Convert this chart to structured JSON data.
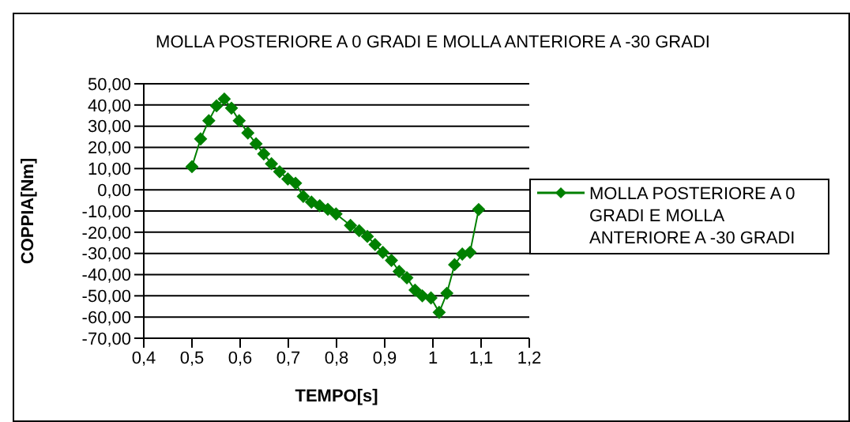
{
  "chart_data": {
    "type": "line",
    "title": "MOLLA POSTERIORE A 0 GRADI E MOLLA ANTERIORE A -30 GRADI",
    "xlabel": "TEMPO[s]",
    "ylabel": "COPPIA[Nm]",
    "x": [
      0.5,
      0.518,
      0.535,
      0.551,
      0.567,
      0.582,
      0.598,
      0.616,
      0.633,
      0.649,
      0.665,
      0.682,
      0.699,
      0.715,
      0.731,
      0.748,
      0.765,
      0.782,
      0.799,
      0.829,
      0.847,
      0.864,
      0.88,
      0.896,
      0.914,
      0.93,
      0.946,
      0.963,
      0.978,
      0.996,
      1.013,
      1.029,
      1.045,
      1.061,
      1.077,
      1.095
    ],
    "series": [
      {
        "name": "MOLLA POSTERIORE A 0 GRADI E MOLLA ANTERIORE A -30 GRADI",
        "color": "#008000",
        "values": [
          10.9,
          24,
          32.6,
          39.6,
          42.8,
          38.5,
          32.6,
          26.8,
          21.7,
          16.9,
          12.3,
          8.5,
          5.1,
          3.1,
          -3.1,
          -5.8,
          -7.5,
          -9.2,
          -11.4,
          -16.8,
          -19.3,
          -22,
          -25.8,
          -29.5,
          -33.3,
          -38.5,
          -41.5,
          -47.3,
          -50,
          -51,
          -57.8,
          -48.8,
          -35.3,
          -30.3,
          -29.5,
          -9.3
        ]
      }
    ],
    "xlim": [
      0.4,
      1.2
    ],
    "xticks": [
      {
        "value": 0.4,
        "label": "0,4"
      },
      {
        "value": 0.5,
        "label": "0,5"
      },
      {
        "value": 0.6,
        "label": "0,6"
      },
      {
        "value": 0.7,
        "label": "0,7"
      },
      {
        "value": 0.8,
        "label": "0,8"
      },
      {
        "value": 0.9,
        "label": "0,9"
      },
      {
        "value": 1,
        "label": "1"
      },
      {
        "value": 1.1,
        "label": "1,1"
      },
      {
        "value": 1.2,
        "label": "1,2"
      }
    ],
    "ylim": [
      -70,
      50
    ],
    "yticks": [
      {
        "value": -70,
        "label": "-70,00"
      },
      {
        "value": -60,
        "label": "-60,00"
      },
      {
        "value": -50,
        "label": "-50,00"
      },
      {
        "value": -40,
        "label": "-40,00"
      },
      {
        "value": -30,
        "label": "-30,00"
      },
      {
        "value": -20,
        "label": "-20,00"
      },
      {
        "value": -10,
        "label": "-10,00"
      },
      {
        "value": 0,
        "label": "0,00"
      },
      {
        "value": 10,
        "label": "10,00"
      },
      {
        "value": 20,
        "label": "20,00"
      },
      {
        "value": 30,
        "label": "30,00"
      },
      {
        "value": 40,
        "label": "40,00"
      },
      {
        "value": 50,
        "label": "50,00"
      }
    ],
    "grid": "y",
    "legend": "right",
    "marker": "diamond",
    "line_style": "solid"
  }
}
